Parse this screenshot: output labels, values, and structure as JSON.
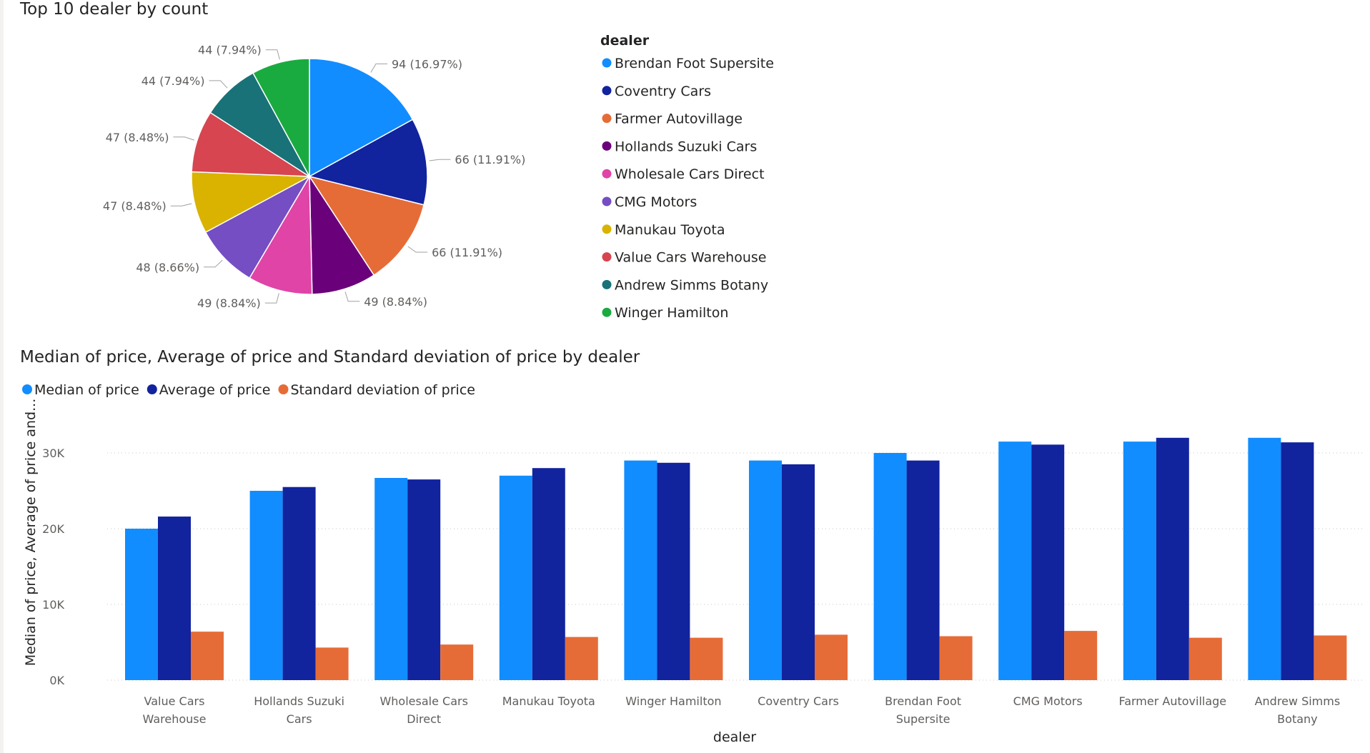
{
  "chart_data": [
    {
      "type": "pie",
      "title": "Top 10 dealer by count",
      "legend_title": "dealer",
      "legend_position": "right",
      "slices": [
        {
          "name": "Brendan Foot Supersite",
          "value": 94,
          "label": "94 (16.97%)",
          "color": "#118DFF"
        },
        {
          "name": "Coventry Cars",
          "value": 66,
          "label": "66 (11.91%)",
          "color": "#12239E"
        },
        {
          "name": "Farmer Autovillage",
          "value": 66,
          "label": "66 (11.91%)",
          "color": "#E66C37"
        },
        {
          "name": "Hollands Suzuki Cars",
          "value": 49,
          "label": "49 (8.84%)",
          "color": "#6B007B"
        },
        {
          "name": "Wholesale Cars Direct",
          "value": 49,
          "label": "49 (8.84%)",
          "color": "#E044A7"
        },
        {
          "name": "CMG Motors",
          "value": 48,
          "label": "48 (8.66%)",
          "color": "#744EC2"
        },
        {
          "name": "Manukau Toyota",
          "value": 47,
          "label": "47 (8.48%)",
          "color": "#D9B300"
        },
        {
          "name": "Value Cars Warehouse",
          "value": 47,
          "label": "47 (8.48%)",
          "color": "#D64550"
        },
        {
          "name": "Andrew Simms Botany",
          "value": 44,
          "label": "44 (7.94%)",
          "color": "#197278"
        },
        {
          "name": "Winger Hamilton",
          "value": 44,
          "label": "44 (7.94%)",
          "color": "#1AAB40"
        }
      ]
    },
    {
      "type": "bar",
      "title": "Median of price, Average of price and Standard deviation of price by dealer",
      "xlabel": "dealer",
      "ylabel": "Median of price, Average of price and...",
      "ylim": [
        0,
        35000
      ],
      "yticks": [
        0,
        10000,
        20000,
        30000
      ],
      "ytick_labels": [
        "0K",
        "10K",
        "20K",
        "30K"
      ],
      "grid": true,
      "legend_position": "top-left",
      "categories": [
        [
          "Value Cars",
          "Warehouse"
        ],
        [
          "Hollands Suzuki",
          "Cars"
        ],
        [
          "Wholesale Cars",
          "Direct"
        ],
        [
          "Manukau Toyota"
        ],
        [
          "Winger Hamilton"
        ],
        [
          "Coventry Cars"
        ],
        [
          "Brendan Foot",
          "Supersite"
        ],
        [
          "CMG Motors"
        ],
        [
          "Farmer Autovillage"
        ],
        [
          "Andrew Simms",
          "Botany"
        ]
      ],
      "series": [
        {
          "name": "Median of price",
          "color": "#118DFF",
          "values": [
            20000,
            25000,
            26700,
            27000,
            29000,
            29000,
            30000,
            31500,
            31500,
            32000
          ]
        },
        {
          "name": "Average of price",
          "color": "#12239E",
          "values": [
            21600,
            25500,
            26500,
            28000,
            28700,
            28500,
            29000,
            31100,
            32000,
            31400
          ]
        },
        {
          "name": "Standard deviation of price",
          "color": "#E66C37",
          "values": [
            6400,
            4300,
            4700,
            5700,
            5600,
            6000,
            5800,
            6500,
            5600,
            5900
          ]
        }
      ]
    }
  ]
}
